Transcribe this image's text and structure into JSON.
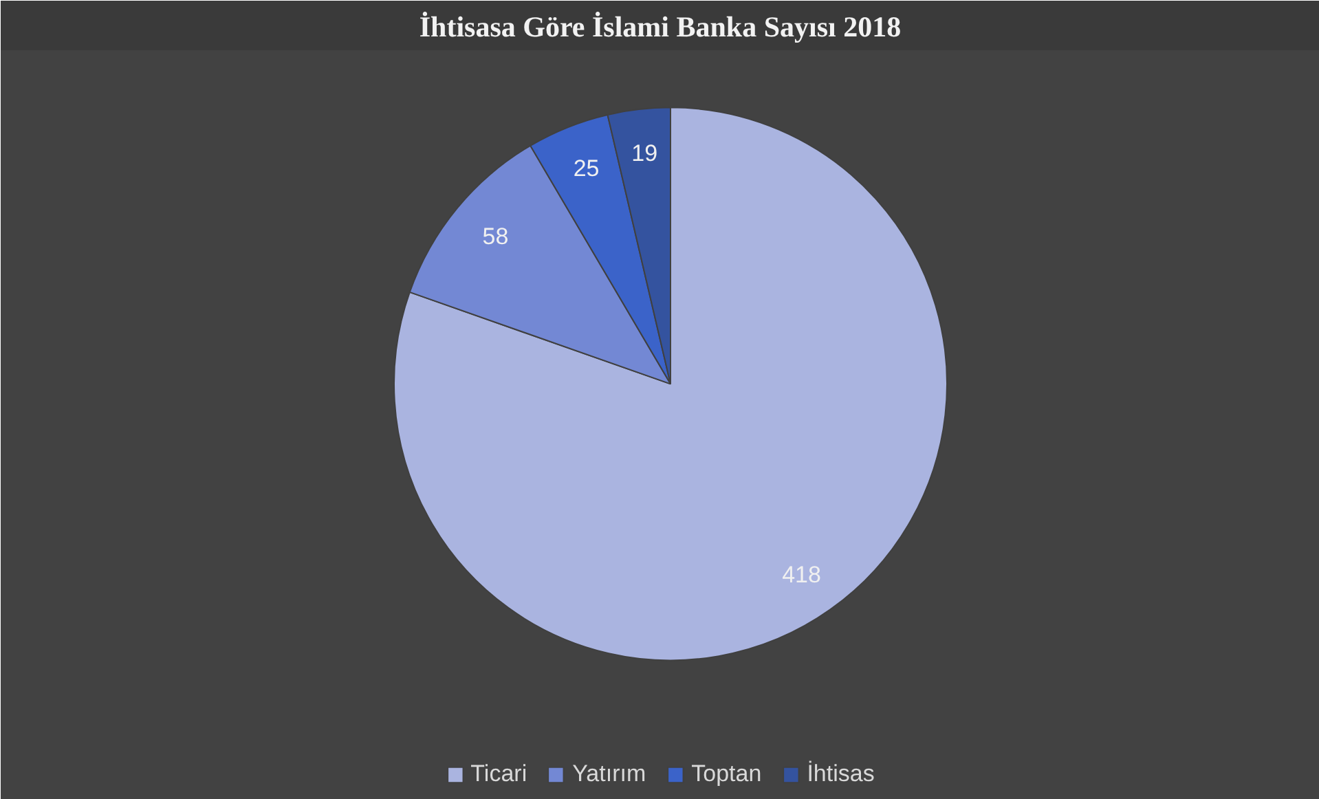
{
  "chart_data": {
    "type": "pie",
    "title": "İhtisasa Göre İslami Banka Sayısı 2018",
    "categories": [
      "Ticari",
      "Yatırım",
      "Toptan",
      "İhtisas"
    ],
    "values": [
      418,
      58,
      25,
      19
    ],
    "colors": [
      "#aab4e0",
      "#7388d4",
      "#3b63c9",
      "#34539f"
    ],
    "data_labels": true,
    "legend": "bottom"
  }
}
